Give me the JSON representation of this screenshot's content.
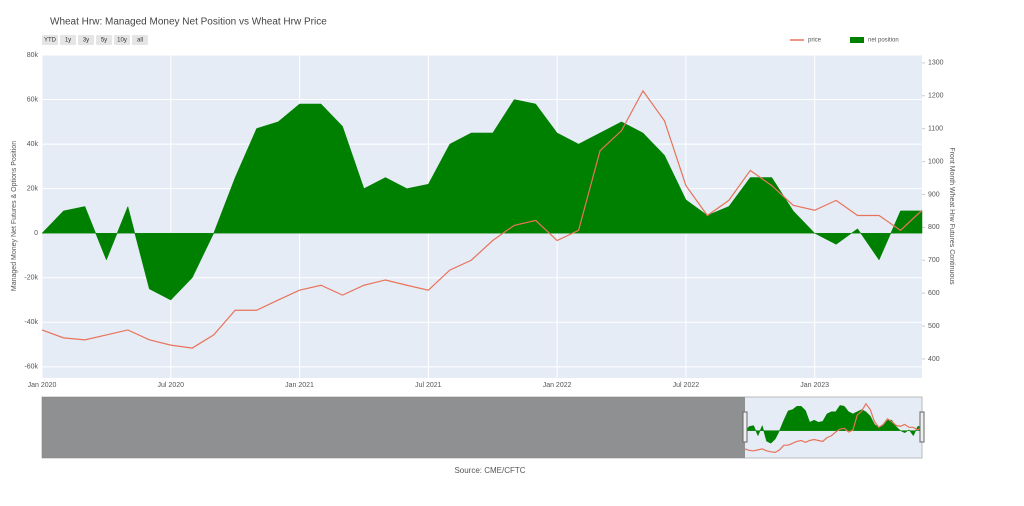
{
  "chart_data": {
    "type": "area-line",
    "title": "Wheat Hrw: Managed Money Net Position vs Wheat Hrw Price",
    "buttons": [
      "YTD",
      "1y",
      "3y",
      "5y",
      "10y",
      "all"
    ],
    "ylabel": "Managed Money Net Futures & Options Position",
    "y2label": "Front Month Wheat Hrw Futures Continuous",
    "source": "Source: CME/CFTC",
    "x": [
      "2020-01",
      "2020-02",
      "2020-03",
      "2020-04",
      "2020-05",
      "2020-06",
      "2020-07",
      "2020-08",
      "2020-09",
      "2020-10",
      "2020-11",
      "2020-12",
      "2021-01",
      "2021-02",
      "2021-03",
      "2021-04",
      "2021-05",
      "2021-06",
      "2021-07",
      "2021-08",
      "2021-09",
      "2021-10",
      "2021-11",
      "2021-12",
      "2022-01",
      "2022-02",
      "2022-03",
      "2022-04",
      "2022-05",
      "2022-06",
      "2022-07",
      "2022-08",
      "2022-09",
      "2022-10",
      "2022-11",
      "2022-12",
      "2023-01",
      "2023-02",
      "2023-03",
      "2023-04",
      "2023-05",
      "2023-06"
    ],
    "series": [
      {
        "name": "net position",
        "color": "#008000",
        "axis": "y",
        "values": [
          0,
          10000,
          12000,
          -12000,
          12000,
          -25000,
          -30000,
          -20000,
          0,
          25000,
          47000,
          50000,
          58000,
          58000,
          48000,
          20000,
          25000,
          20000,
          22000,
          40000,
          45000,
          45000,
          60000,
          58000,
          45000,
          40000,
          45000,
          50000,
          45000,
          35000,
          15000,
          8000,
          12000,
          25000,
          25000,
          10000,
          0,
          -5000,
          2000,
          -12000,
          10000,
          10000
        ]
      },
      {
        "name": "price",
        "color": "#e8735a",
        "axis": "y2",
        "values": [
          488,
          464,
          458,
          473,
          488,
          458,
          442,
          433,
          473,
          548,
          548,
          579,
          609,
          624,
          594,
          624,
          640,
          624,
          609,
          670,
          700,
          760,
          806,
          821,
          760,
          791,
          1033,
          1094,
          1215,
          1124,
          927,
          836,
          882,
          973,
          927,
          867,
          852,
          882,
          836,
          836,
          791,
          852
        ]
      }
    ],
    "xlim": [
      "2020-01",
      "2023-06"
    ],
    "xticks": [
      {
        "value": "2020-01",
        "label": "Jan 2020"
      },
      {
        "value": "2020-07",
        "label": "Jul 2020"
      },
      {
        "value": "2021-01",
        "label": "Jan 2021"
      },
      {
        "value": "2021-07",
        "label": "Jul 2021"
      },
      {
        "value": "2022-01",
        "label": "Jan 2022"
      },
      {
        "value": "2022-07",
        "label": "Jul 2022"
      },
      {
        "value": "2023-01",
        "label": "Jan 2023"
      }
    ],
    "ylim": [
      -65000,
      80000
    ],
    "yticks": [
      {
        "value": -60000,
        "label": "-60k"
      },
      {
        "value": -40000,
        "label": "-40k"
      },
      {
        "value": -20000,
        "label": "-20k"
      },
      0,
      {
        "value": 20000,
        "label": "20k"
      },
      {
        "value": 40000,
        "label": "40k"
      },
      {
        "value": 60000,
        "label": "60k"
      },
      {
        "value": 80000,
        "label": "80k"
      }
    ],
    "y2lim": [
      342,
      1324
    ],
    "y2ticks": [
      400,
      500,
      600,
      700,
      800,
      900,
      1000,
      1100,
      1200,
      1300
    ],
    "grid": true,
    "legend": "top-right"
  }
}
